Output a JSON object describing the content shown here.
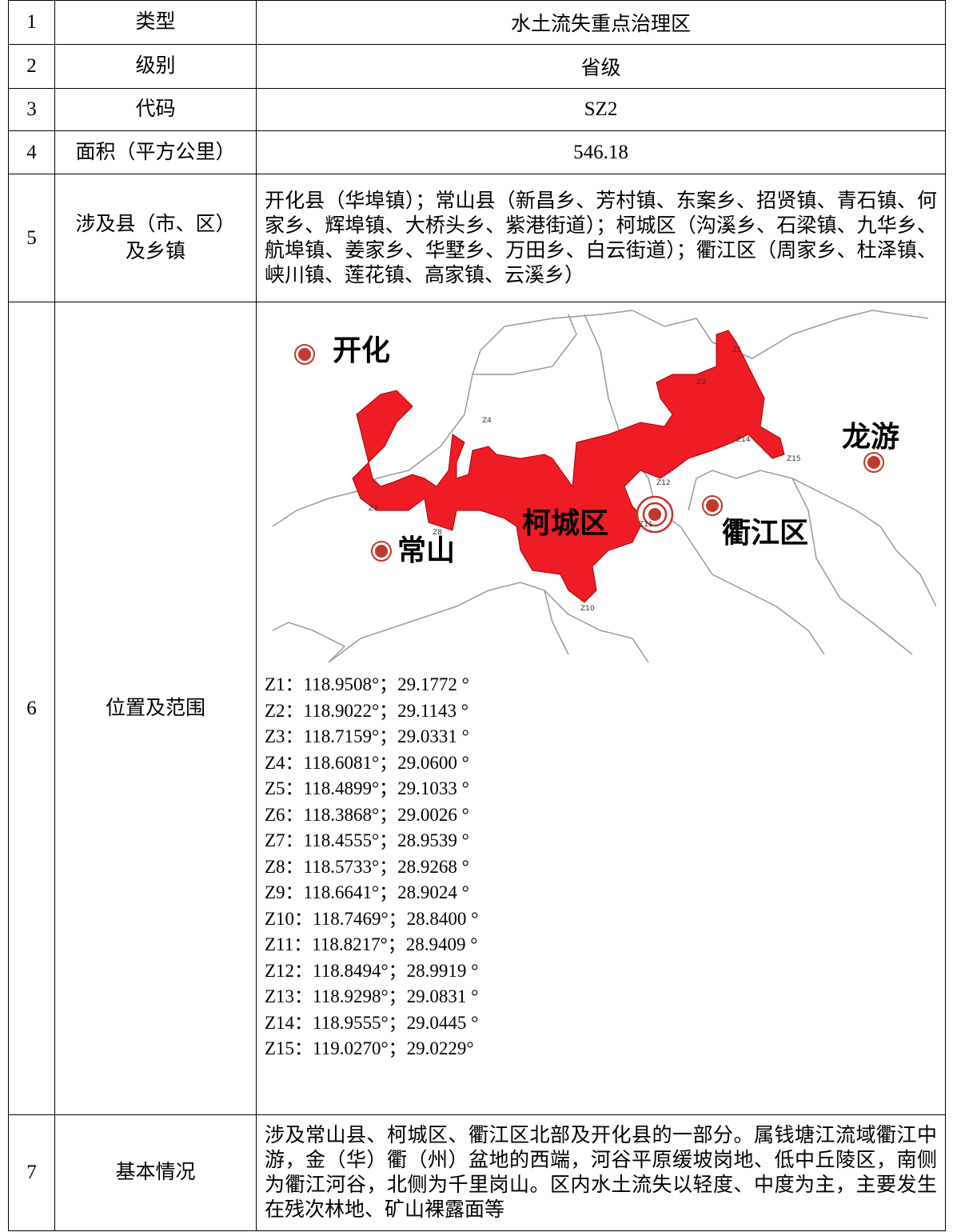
{
  "table": {
    "rows": [
      {
        "no": "1",
        "name": "类型",
        "value": "水土流失重点治理区"
      },
      {
        "no": "2",
        "name": "级别",
        "value": "省级"
      },
      {
        "no": "3",
        "name": "代码",
        "value": "SZ2"
      },
      {
        "no": "4",
        "name": "面积（平方公里）",
        "value": "546.18"
      },
      {
        "no": "5",
        "name": "涉及县（市、区）及乡镇",
        "value": "开化县（华埠镇）；常山县（新昌乡、芳村镇、东案乡、招贤镇、青石镇、何家乡、辉埠镇、大桥头乡、紫港街道）；柯城区（沟溪乡、石梁镇、九华乡、航埠镇、姜家乡、华墅乡、万田乡、白云街道）；衢江区（周家乡、杜泽镇、峡川镇、莲花镇、高家镇、云溪乡）"
      },
      {
        "no": "6",
        "name": "位置及范围",
        "map": {
          "places": [
            "开化",
            "常山",
            "柯城区",
            "衢江区",
            "龙游"
          ],
          "points": [
            "Z1",
            "Z2",
            "Z4",
            "Z7",
            "Z8",
            "Z10",
            "Z11",
            "Z12",
            "Z14",
            "Z15"
          ]
        },
        "coordinates": [
          "Z1：118.9508°；29.1772 °",
          "Z2：118.9022°；29.1143 °",
          "Z3：118.7159°；29.0331 °",
          "Z4：118.6081°；29.0600 °",
          "Z5：118.4899°；29.1033 °",
          "Z6：118.3868°；29.0026 °",
          "Z7：118.4555°；28.9539 °",
          "Z8：118.5733°；28.9268 °",
          "Z9：118.6641°；28.9024 °",
          "Z10：118.7469°；28.8400 °",
          "Z11：118.8217°；28.9409 °",
          "Z12：118.8494°；28.9919 °",
          "Z13：118.9298°；29.0831 °",
          "Z14：118.9555°；29.0445 °",
          "Z15：119.0270°；29.0229°"
        ]
      },
      {
        "no": "7",
        "name": "基本情况",
        "value": "涉及常山县、柯城区、衢江区北部及开化县的一部分。属钱塘江流域衢江中游，金（华）衢（州）盆地的西端，河谷平原缓坡岗地、低中丘陵区，南侧为衢江河谷，北侧为千里岗山。区内水土流失以轻度、中度为主，主要发生在残次林地、矿山裸露面等"
      }
    ]
  }
}
